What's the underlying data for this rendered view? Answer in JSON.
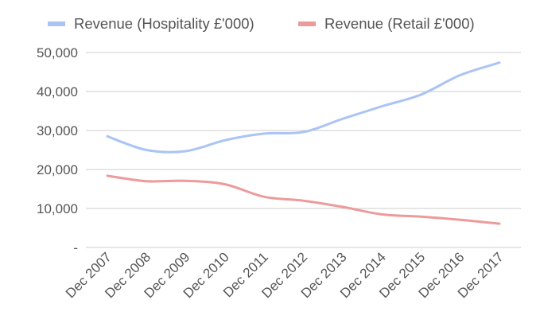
{
  "chart_data": {
    "type": "line",
    "categories": [
      "Dec 2007",
      "Dec 2008",
      "Dec 2009",
      "Dec 2010",
      "Dec 2011",
      "Dec 2012",
      "Dec 2013",
      "Dec 2014",
      "Dec 2015",
      "Dec 2016",
      "Dec 2017"
    ],
    "series": [
      {
        "name": "Revenue (Hospitality £'000)",
        "color": "#aac4f5",
        "values": [
          28500,
          25000,
          24700,
          27500,
          29200,
          29600,
          33000,
          36200,
          39200,
          44200,
          47400
        ]
      },
      {
        "name": "Revenue (Retail £'000)",
        "color": "#ec9b9a",
        "values": [
          18400,
          17000,
          17100,
          16200,
          13000,
          12000,
          10400,
          8500,
          7900,
          7100,
          6100
        ]
      }
    ],
    "ylim": [
      0,
      50000
    ],
    "yticks": [
      0,
      10000,
      20000,
      30000,
      40000,
      50000
    ],
    "ytick_labels": [
      "-",
      "10,000",
      "20,000",
      "30,000",
      "40,000",
      "50,000"
    ],
    "xtick_labels": [
      "Dec 2007",
      "Dec 2008",
      "Dec 2009",
      "Dec 2010",
      "Dec 2011",
      "Dec 2012",
      "Dec 2013",
      "Dec 2014",
      "Dec 2015",
      "Dec 2016",
      "Dec 2017"
    ],
    "grid": true,
    "legend": "top",
    "gridline_color": "#cccccc",
    "axis_text_color": "#555555"
  }
}
